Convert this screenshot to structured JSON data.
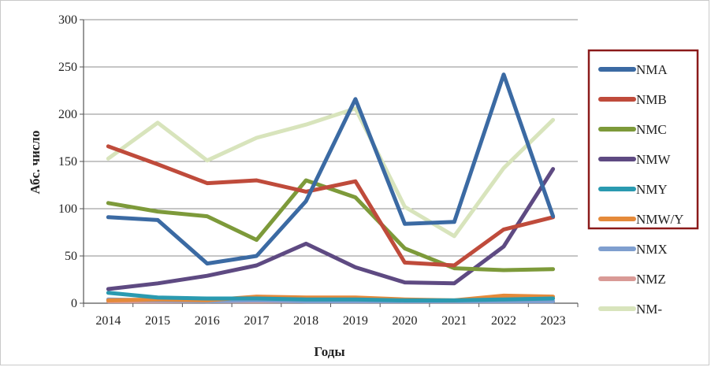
{
  "chart_data": {
    "type": "line",
    "title": "",
    "xlabel": "Годы",
    "ylabel": "Абс. число",
    "ylim": [
      0,
      300
    ],
    "yticks": [
      "0",
      "50",
      "100",
      "150",
      "200",
      "250",
      "300"
    ],
    "categories": [
      "2014",
      "2015",
      "2016",
      "2017",
      "2018",
      "2019",
      "2020",
      "2021",
      "2022",
      "2023"
    ],
    "grid": "horizontal",
    "legend_position": "right",
    "series": [
      {
        "name": "NMA",
        "color": "#3b6aa3",
        "values": [
          91,
          88,
          42,
          50,
          108,
          216,
          84,
          86,
          242,
          92
        ]
      },
      {
        "name": "NMB",
        "color": "#bf4b3b",
        "values": [
          166,
          147,
          127,
          130,
          118,
          129,
          43,
          40,
          78,
          91
        ]
      },
      {
        "name": "NMC",
        "color": "#7d9a3a",
        "values": [
          106,
          97,
          92,
          67,
          130,
          112,
          58,
          37,
          35,
          36
        ]
      },
      {
        "name": "NMW",
        "color": "#5e4a82",
        "values": [
          15,
          21,
          29,
          40,
          63,
          38,
          22,
          21,
          60,
          142
        ]
      },
      {
        "name": "NMY",
        "color": "#2a9ab0",
        "values": [
          11,
          6,
          5,
          5,
          4,
          4,
          3,
          3,
          4,
          5
        ]
      },
      {
        "name": "NMW/Y",
        "color": "#e58a3a",
        "values": [
          3,
          4,
          3,
          7,
          6,
          6,
          4,
          3,
          8,
          7
        ]
      },
      {
        "name": "NMX",
        "color": "#7f9fcf",
        "values": [
          4,
          3,
          2,
          3,
          2,
          2,
          2,
          2,
          2,
          2
        ]
      },
      {
        "name": "NMZ",
        "color": "#d99a96",
        "values": [
          2,
          2,
          2,
          2,
          2,
          2,
          2,
          2,
          2,
          2
        ]
      },
      {
        "name": "NM-",
        "color": "#d8e4bc",
        "values": [
          153,
          191,
          151,
          175,
          189,
          206,
          102,
          71,
          143,
          194
        ]
      }
    ]
  }
}
